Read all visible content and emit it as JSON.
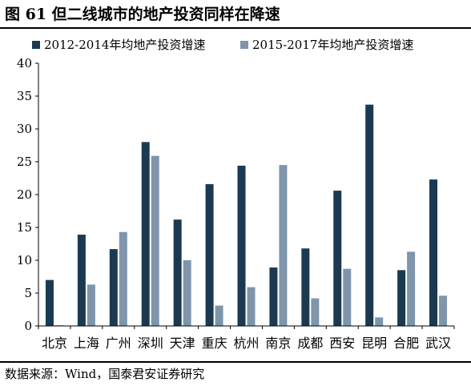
{
  "header": {
    "figure_title": "图 61  但二线城市的地产投资同样在降速"
  },
  "footer": {
    "source": "数据来源：Wind，国泰君安证券研究"
  },
  "colors": {
    "series_1": "#1b3a52",
    "series_2": "#7f95ab"
  },
  "chart_data": {
    "type": "bar",
    "categories": [
      "北京",
      "上海",
      "广州",
      "深圳",
      "天津",
      "重庆",
      "杭州",
      "南京",
      "成都",
      "西安",
      "昆明",
      "合肥",
      "武汉"
    ],
    "series": [
      {
        "name": "2012-2014年均地产投资增速",
        "values": [
          7.0,
          13.9,
          11.7,
          28.0,
          16.2,
          21.6,
          24.4,
          8.9,
          11.8,
          20.6,
          33.7,
          8.5,
          22.3
        ]
      },
      {
        "name": "2015-2017年均地产投资增速",
        "values": [
          0.1,
          6.3,
          14.3,
          25.9,
          10.0,
          3.1,
          5.9,
          24.5,
          4.2,
          8.7,
          1.3,
          11.3,
          4.6
        ]
      }
    ],
    "ylim": [
      0,
      40
    ],
    "yticks": [
      "0",
      "5",
      "10",
      "15",
      "20",
      "25",
      "30",
      "35",
      "40"
    ],
    "legend_position": "top",
    "grid": false
  }
}
